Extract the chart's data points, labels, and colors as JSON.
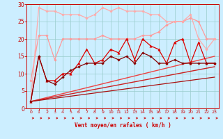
{
  "xlabel": "Vent moyen/en rafales ( km/h )",
  "background_color": "#cceeff",
  "grid_color": "#99cccc",
  "xlim": [
    -0.5,
    23.5
  ],
  "ylim": [
    0,
    30
  ],
  "yticks": [
    0,
    5,
    10,
    15,
    20,
    25,
    30
  ],
  "xticks": [
    0,
    1,
    2,
    3,
    4,
    5,
    6,
    7,
    8,
    9,
    10,
    11,
    12,
    13,
    14,
    15,
    16,
    17,
    18,
    19,
    20,
    21,
    22,
    23
  ],
  "lines": [
    {
      "x": [
        0,
        1,
        2,
        3,
        4,
        5,
        6,
        7,
        8,
        9,
        10,
        11,
        12,
        13,
        14,
        15,
        16,
        17,
        18,
        19,
        20,
        21,
        22,
        23
      ],
      "y": [
        2,
        29,
        28,
        28,
        27,
        27,
        27,
        26,
        27,
        29,
        28,
        29,
        28,
        28,
        28,
        27,
        27,
        25,
        25,
        25,
        27,
        20,
        17,
        20
      ],
      "color": "#ffaaaa",
      "lw": 0.9,
      "marker": "D",
      "ms": 1.8,
      "zorder": 4
    },
    {
      "x": [
        0,
        1,
        2,
        3,
        4,
        5,
        6,
        7,
        8,
        9,
        10,
        11,
        12,
        13,
        14,
        15,
        16,
        17,
        18,
        19,
        20,
        21,
        22,
        23
      ],
      "y": [
        8,
        21,
        21,
        14,
        20,
        20,
        20,
        20,
        20,
        21,
        20,
        20,
        20,
        20,
        21,
        21,
        22,
        24,
        25,
        25,
        26,
        25,
        20,
        20
      ],
      "color": "#ff9999",
      "lw": 0.9,
      "marker": "D",
      "ms": 1.8,
      "zorder": 3
    },
    {
      "x": [
        0,
        1,
        2,
        3,
        4,
        5,
        6,
        7,
        8,
        9,
        10,
        11,
        12,
        13,
        14,
        15,
        16,
        17,
        18,
        19,
        20,
        21,
        22,
        23
      ],
      "y": [
        2,
        15,
        8,
        8,
        10,
        10,
        13,
        17,
        13,
        14,
        17,
        16,
        20,
        14,
        20,
        18,
        17,
        13,
        19,
        20,
        13,
        19,
        13,
        13
      ],
      "color": "#dd0000",
      "lw": 0.9,
      "marker": "^",
      "ms": 2.5,
      "zorder": 5
    },
    {
      "x": [
        0,
        1,
        2,
        3,
        4,
        5,
        6,
        7,
        8,
        9,
        10,
        11,
        12,
        13,
        14,
        15,
        16,
        17,
        18,
        19,
        20,
        21,
        22,
        23
      ],
      "y": [
        2,
        15,
        8,
        7,
        9,
        11,
        12,
        13,
        13,
        13,
        15,
        14,
        15,
        13,
        16,
        15,
        13,
        13,
        14,
        13,
        13,
        13,
        13,
        13
      ],
      "color": "#880000",
      "lw": 0.9,
      "marker": "D",
      "ms": 1.8,
      "zorder": 5
    },
    {
      "x": [
        0,
        23
      ],
      "y": [
        2,
        15
      ],
      "color": "#ee4444",
      "lw": 1.0,
      "marker": null,
      "ms": 0,
      "zorder": 2
    },
    {
      "x": [
        0,
        23
      ],
      "y": [
        2,
        12
      ],
      "color": "#cc2222",
      "lw": 1.0,
      "marker": null,
      "ms": 0,
      "zorder": 2
    },
    {
      "x": [
        0,
        23
      ],
      "y": [
        2,
        9
      ],
      "color": "#aa1111",
      "lw": 0.9,
      "marker": null,
      "ms": 0,
      "zorder": 2
    }
  ],
  "arrow_color": "#cc0000",
  "tick_color": "#cc0000",
  "spine_color": "#cc0000"
}
